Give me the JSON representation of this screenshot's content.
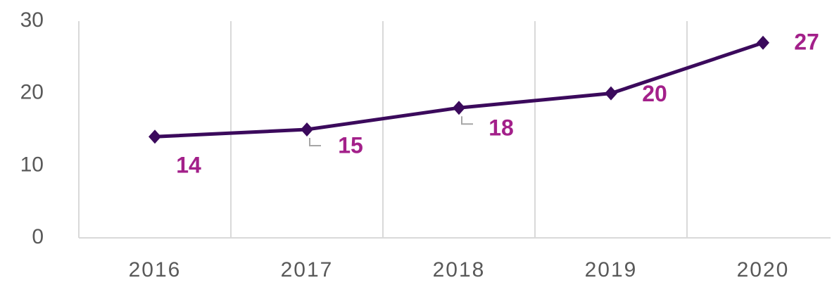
{
  "chart_data": {
    "type": "line",
    "categories": [
      "2016",
      "2017",
      "2018",
      "2019",
      "2020"
    ],
    "series": [
      {
        "color": "#3b0a5c",
        "values": [
          14,
          15,
          18,
          20,
          27
        ]
      }
    ],
    "label_color": "#a3208a",
    "ylim": [
      0,
      30
    ],
    "yticks": [
      0,
      10,
      20,
      30
    ],
    "grid": true
  }
}
